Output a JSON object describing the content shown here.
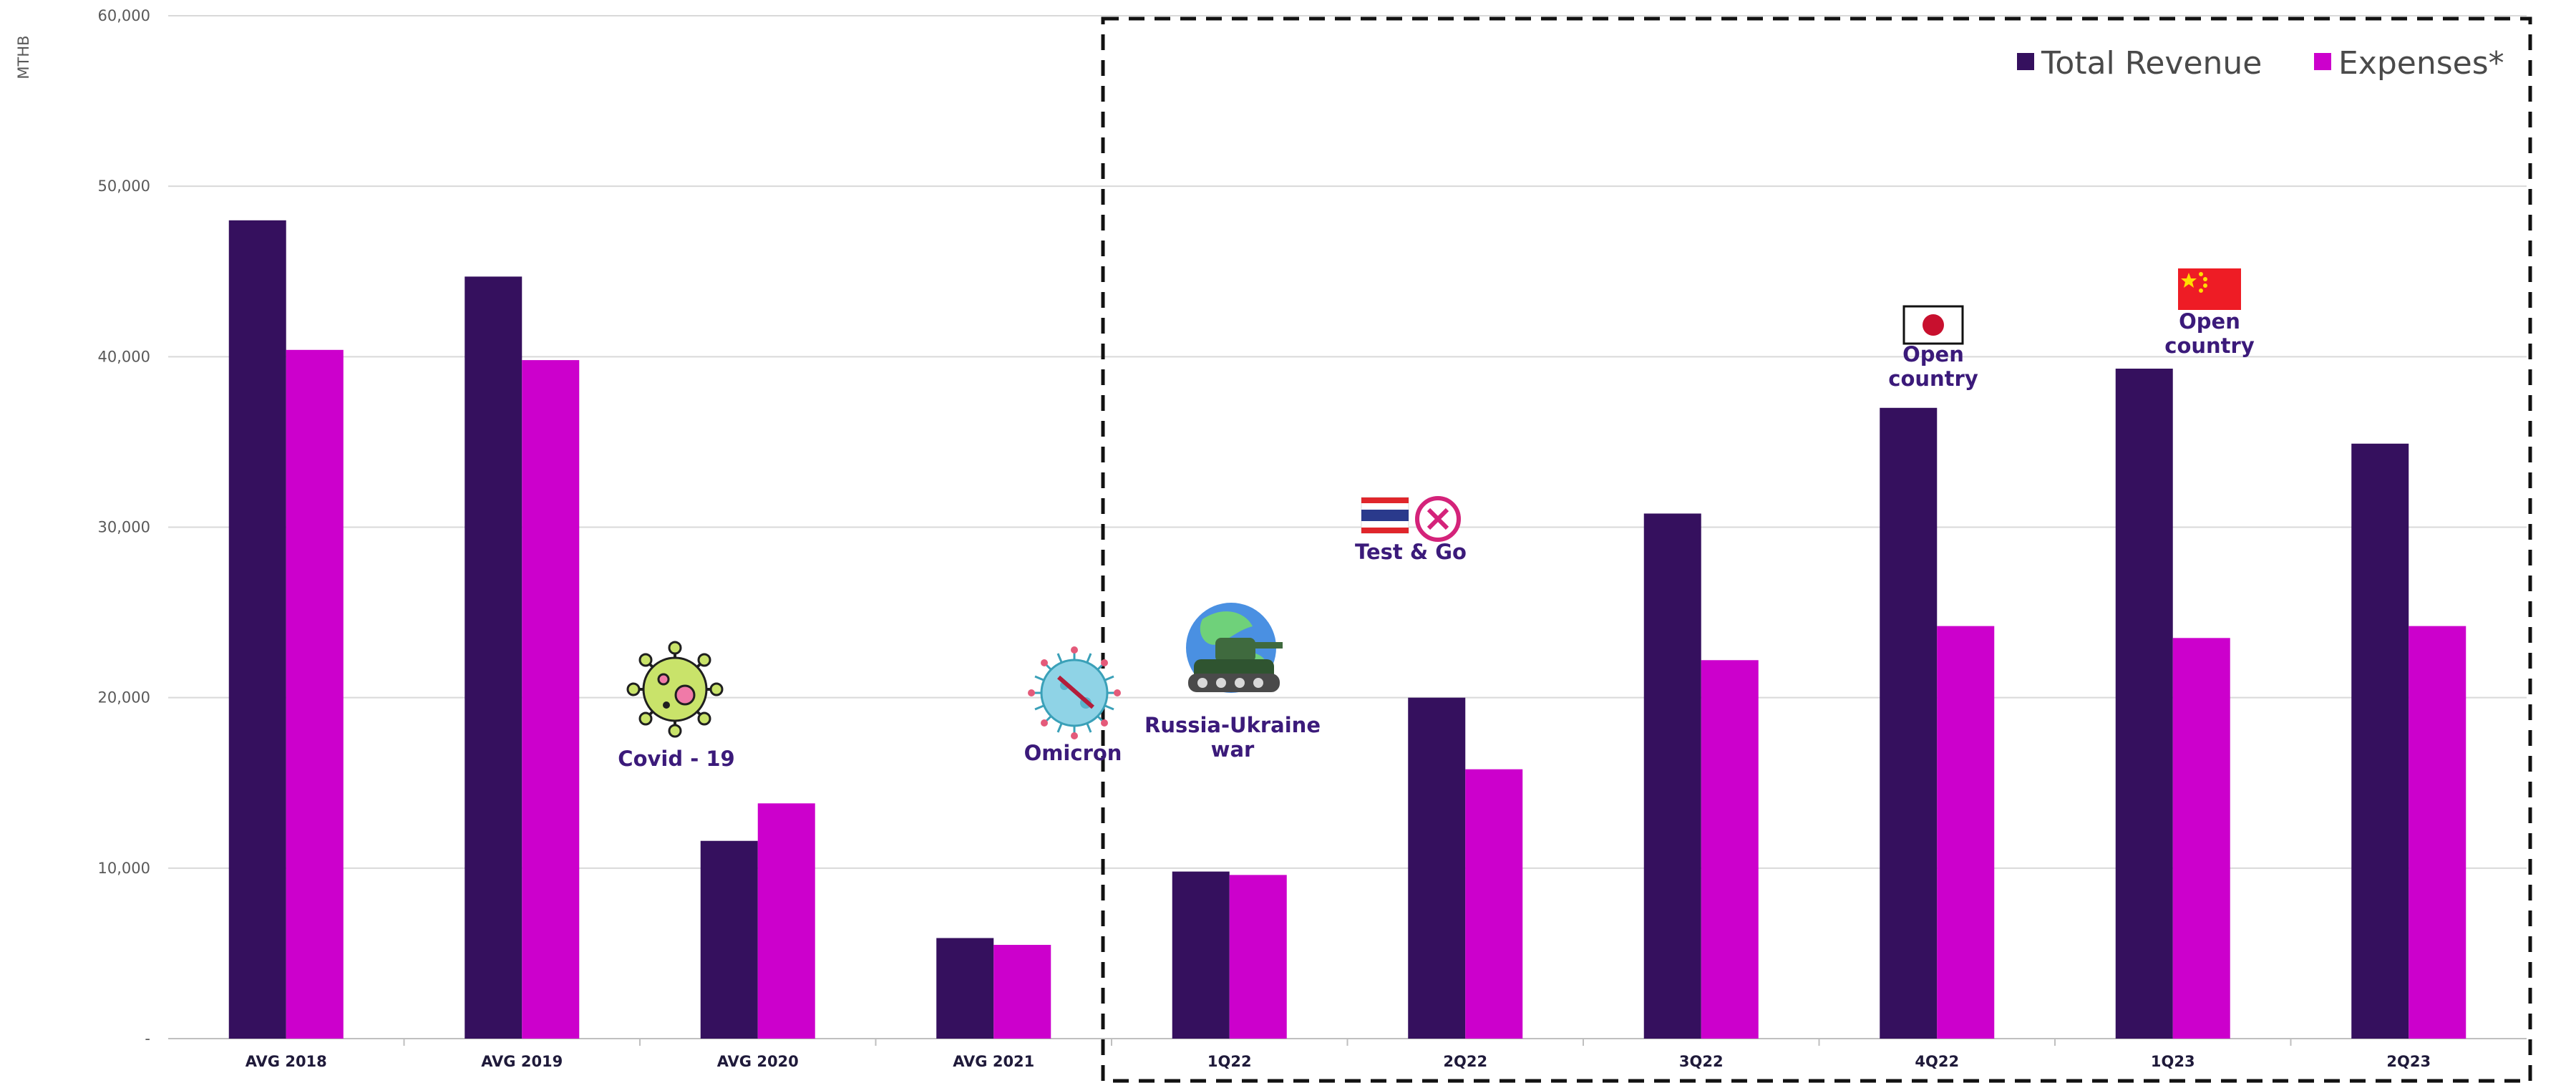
{
  "chart_data": {
    "type": "bar",
    "ylabel": "MTHB",
    "ylim": [
      0,
      60000
    ],
    "yticks": [
      0,
      10000,
      20000,
      30000,
      40000,
      50000,
      60000
    ],
    "ytick_labels": [
      "-",
      "10,000",
      "20,000",
      "30,000",
      "40,000",
      "50,000",
      "60,000"
    ],
    "grid": true,
    "legend_position": "top-right",
    "categories": [
      "AVG 2018",
      "AVG 2019",
      "AVG 2020",
      "AVG 2021",
      "1Q22",
      "2Q22",
      "3Q22",
      "4Q22",
      "1Q23",
      "2Q23"
    ],
    "series": [
      {
        "name": "Total Revenue",
        "color": "#35105e",
        "values": [
          48000,
          44700,
          11600,
          5900,
          9800,
          20000,
          30800,
          37000,
          39300,
          34900
        ]
      },
      {
        "name": "Expenses*",
        "color": "#cc00cc",
        "values": [
          40400,
          39800,
          13800,
          5500,
          9600,
          15800,
          22200,
          24200,
          23500,
          24200
        ]
      }
    ],
    "highlight_box": {
      "from_category": "1Q22",
      "to_category": "2Q23",
      "style": "dashed"
    },
    "annotations": [
      {
        "text_lines": [
          "Covid - 19"
        ],
        "icon": "virus-icon",
        "between": "AVG 2019|AVG 2020",
        "y": 20000
      },
      {
        "text_lines": [
          "Omicron"
        ],
        "icon": "omicron-virus-icon",
        "between": "AVG 2021",
        "y": 20000
      },
      {
        "text_lines": [
          "Russia-Ukraine",
          "war"
        ],
        "icon": "globe-tank-icon",
        "between": "1Q22",
        "y": 21000
      },
      {
        "text_lines": [
          "Test & Go"
        ],
        "icon": "thai-flag-cross-icon",
        "between": "2Q22",
        "y": 29500
      },
      {
        "text_lines": [
          "Open",
          "country"
        ],
        "icon": "japan-flag-icon",
        "between": "4Q22",
        "y": 41000
      },
      {
        "text_lines": [
          "Open",
          "country"
        ],
        "icon": "china-flag-icon",
        "between": "1Q23",
        "y": 43000
      }
    ]
  }
}
